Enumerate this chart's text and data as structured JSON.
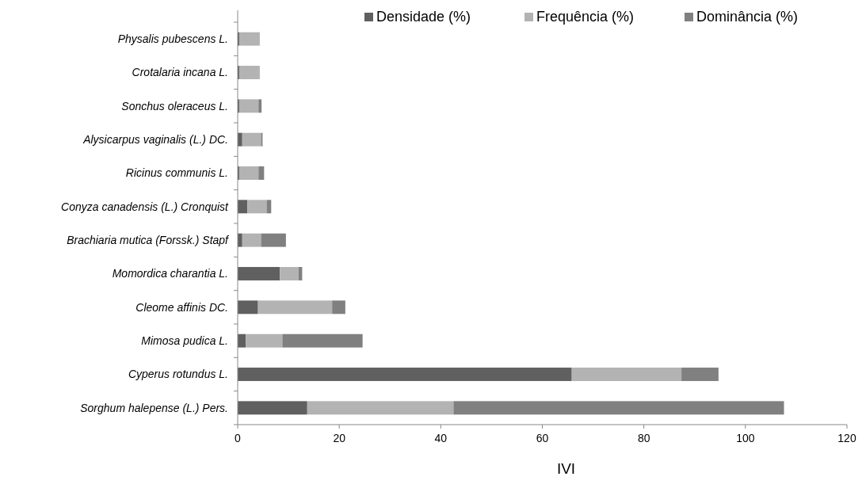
{
  "chart_data": {
    "type": "bar",
    "orientation": "horizontal",
    "stacked": true,
    "xlabel": "IVI",
    "categories": [
      "Physalis pubescens L.",
      "Crotalaria incana L.",
      "Sonchus oleraceus L.",
      "Alysicarpus vaginalis (L.) DC.",
      "Ricinus communis L.",
      "Conyza canadensis (L.) Cronquist",
      "Brachiaria mutica (Forssk.) Stapf",
      "Momordica charantia L.",
      "Cleome affinis DC.",
      "Mimosa pudica L.",
      "Cyperus rotundus L.",
      "Sorghum halepense (L.) Pers."
    ],
    "series": [
      {
        "name": "Densidade (%)",
        "color": "#606060",
        "values": [
          0.3,
          0.3,
          0.3,
          0.9,
          0.3,
          1.9,
          0.9,
          8.3,
          4.0,
          1.6,
          65.8,
          13.7
        ]
      },
      {
        "name": "Frequência (%)",
        "color": "#b3b3b3",
        "values": [
          3.9,
          3.9,
          3.8,
          3.7,
          3.8,
          3.8,
          3.7,
          3.7,
          14.6,
          7.2,
          21.6,
          28.8
        ]
      },
      {
        "name": "Dominância (%)",
        "color": "#808080",
        "values": [
          0.1,
          0.1,
          0.6,
          0.3,
          1.1,
          0.9,
          4.9,
          0.7,
          2.6,
          15.8,
          7.3,
          65.1
        ]
      }
    ],
    "xlim": [
      0,
      120
    ],
    "xticks": [
      0,
      20,
      40,
      60,
      80,
      100,
      120
    ],
    "grid": false,
    "legend": "top right"
  }
}
